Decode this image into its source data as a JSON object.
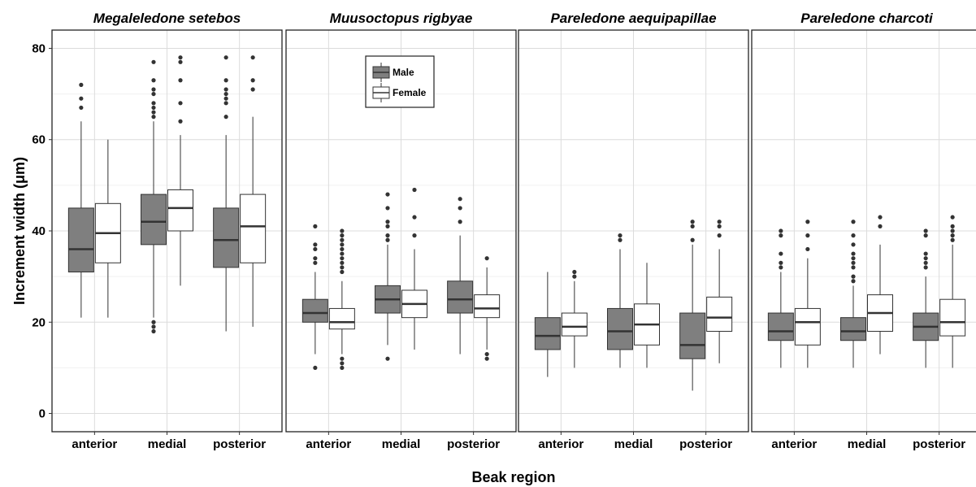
{
  "chart_data": {
    "type": "boxplot",
    "xlabel": "Beak region",
    "ylabel": "Increment width (μm)",
    "ylim": [
      -4,
      84
    ],
    "yticks": [
      0,
      20,
      40,
      60,
      80
    ],
    "grid": true,
    "legend": {
      "placement": "inside second panel, top",
      "entries": [
        {
          "name": "Male",
          "color": "#7f7f7f"
        },
        {
          "name": "Female",
          "color": "#ffffff"
        }
      ]
    },
    "categories": [
      "anterior",
      "medial",
      "posterior"
    ],
    "panels": [
      {
        "title": "Megaleledone setebos",
        "groups": [
          {
            "category": "anterior",
            "series": "Male",
            "lower_whisker": 21,
            "q1": 31,
            "median": 36,
            "q3": 45,
            "upper_whisker": 64,
            "outliers": [
              67,
              69,
              72
            ]
          },
          {
            "category": "anterior",
            "series": "Female",
            "lower_whisker": 21,
            "q1": 33,
            "median": 39.5,
            "q3": 46,
            "upper_whisker": 60,
            "outliers": []
          },
          {
            "category": "medial",
            "series": "Male",
            "lower_whisker": 21,
            "q1": 37,
            "median": 42,
            "q3": 48,
            "upper_whisker": 64,
            "outliers": [
              18,
              19,
              20,
              65,
              66,
              67,
              68,
              70,
              71,
              73,
              77
            ]
          },
          {
            "category": "medial",
            "series": "Female",
            "lower_whisker": 28,
            "q1": 40,
            "median": 45,
            "q3": 49,
            "upper_whisker": 61,
            "outliers": [
              64,
              68,
              73,
              77,
              78
            ]
          },
          {
            "category": "posterior",
            "series": "Male",
            "lower_whisker": 18,
            "q1": 32,
            "median": 38,
            "q3": 45,
            "upper_whisker": 61,
            "outliers": [
              65,
              68,
              69,
              70,
              71,
              73,
              78
            ]
          },
          {
            "category": "posterior",
            "series": "Female",
            "lower_whisker": 19,
            "q1": 33,
            "median": 41,
            "q3": 48,
            "upper_whisker": 65,
            "outliers": [
              71,
              73,
              78
            ]
          }
        ]
      },
      {
        "title": "Muusoctopus rigbyae",
        "groups": [
          {
            "category": "anterior",
            "series": "Male",
            "lower_whisker": 13,
            "q1": 20,
            "median": 22,
            "q3": 25,
            "upper_whisker": 31,
            "outliers": [
              10,
              33,
              34,
              36,
              37,
              41
            ]
          },
          {
            "category": "anterior",
            "series": "Female",
            "lower_whisker": 13,
            "q1": 18.5,
            "median": 20,
            "q3": 23,
            "upper_whisker": 29,
            "outliers": [
              10,
              11,
              12,
              31,
              32,
              33,
              34,
              35,
              36,
              37,
              38,
              39,
              40
            ]
          },
          {
            "category": "medial",
            "series": "Male",
            "lower_whisker": 15,
            "q1": 22,
            "median": 25,
            "q3": 28,
            "upper_whisker": 37,
            "outliers": [
              12,
              38,
              39,
              41,
              42,
              45,
              48
            ]
          },
          {
            "category": "medial",
            "series": "Female",
            "lower_whisker": 14,
            "q1": 21,
            "median": 24,
            "q3": 27,
            "upper_whisker": 36,
            "outliers": [
              39,
              43,
              49
            ]
          },
          {
            "category": "posterior",
            "series": "Male",
            "lower_whisker": 13,
            "q1": 22,
            "median": 25,
            "q3": 29,
            "upper_whisker": 39,
            "outliers": [
              42,
              45,
              47
            ]
          },
          {
            "category": "posterior",
            "series": "Female",
            "lower_whisker": 14,
            "q1": 21,
            "median": 23,
            "q3": 26,
            "upper_whisker": 32,
            "outliers": [
              12,
              13,
              34
            ]
          }
        ]
      },
      {
        "title": "Pareledone aequipapillae",
        "groups": [
          {
            "category": "anterior",
            "series": "Male",
            "lower_whisker": 8,
            "q1": 14,
            "median": 17,
            "q3": 21,
            "upper_whisker": 31,
            "outliers": []
          },
          {
            "category": "anterior",
            "series": "Female",
            "lower_whisker": 10,
            "q1": 17,
            "median": 19,
            "q3": 22,
            "upper_whisker": 29,
            "outliers": [
              30,
              31
            ]
          },
          {
            "category": "medial",
            "series": "Male",
            "lower_whisker": 10,
            "q1": 14,
            "median": 18,
            "q3": 23,
            "upper_whisker": 36,
            "outliers": [
              38,
              39
            ]
          },
          {
            "category": "medial",
            "series": "Female",
            "lower_whisker": 10,
            "q1": 15,
            "median": 19.5,
            "q3": 24,
            "upper_whisker": 33,
            "outliers": []
          },
          {
            "category": "posterior",
            "series": "Male",
            "lower_whisker": 5,
            "q1": 12,
            "median": 15,
            "q3": 22,
            "upper_whisker": 37,
            "outliers": [
              38,
              41,
              42
            ]
          },
          {
            "category": "posterior",
            "series": "Female",
            "lower_whisker": 11,
            "q1": 18,
            "median": 21,
            "q3": 25.5,
            "upper_whisker": 36,
            "outliers": [
              39,
              41,
              42
            ]
          }
        ]
      },
      {
        "title": "Pareledone charcoti",
        "groups": [
          {
            "category": "anterior",
            "series": "Male",
            "lower_whisker": 10,
            "q1": 16,
            "median": 18,
            "q3": 22,
            "upper_whisker": 31,
            "outliers": [
              32,
              33,
              35,
              39,
              40
            ]
          },
          {
            "category": "anterior",
            "series": "Female",
            "lower_whisker": 10,
            "q1": 15,
            "median": 20,
            "q3": 23,
            "upper_whisker": 34,
            "outliers": [
              36,
              39,
              42
            ]
          },
          {
            "category": "medial",
            "series": "Male",
            "lower_whisker": 10,
            "q1": 16,
            "median": 18,
            "q3": 21,
            "upper_whisker": 28,
            "outliers": [
              29,
              30,
              32,
              33,
              34,
              35,
              37,
              39,
              42
            ]
          },
          {
            "category": "medial",
            "series": "Female",
            "lower_whisker": 13,
            "q1": 18,
            "median": 22,
            "q3": 26,
            "upper_whisker": 37,
            "outliers": [
              41,
              43
            ]
          },
          {
            "category": "posterior",
            "series": "Male",
            "lower_whisker": 10,
            "q1": 16,
            "median": 19,
            "q3": 22,
            "upper_whisker": 30,
            "outliers": [
              32,
              33,
              34,
              35,
              39,
              40
            ]
          },
          {
            "category": "posterior",
            "series": "Female",
            "lower_whisker": 10,
            "q1": 17,
            "median": 20,
            "q3": 25,
            "upper_whisker": 37,
            "outliers": [
              38,
              39,
              40,
              41,
              43
            ]
          }
        ]
      }
    ]
  }
}
